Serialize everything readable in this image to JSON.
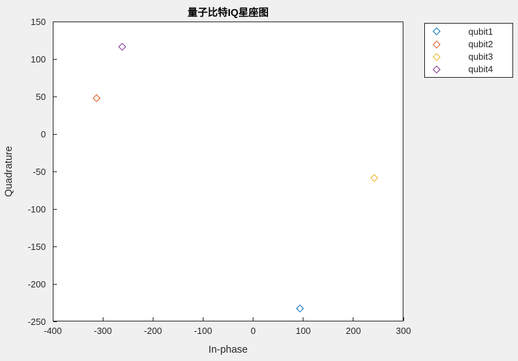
{
  "figure": {
    "background": "#F0F0F0"
  },
  "chart_data": {
    "type": "scatter",
    "title": "量子比特IQ星座图",
    "xlabel": "In-phase",
    "ylabel": "Quadrature",
    "xlim": [
      -400,
      300
    ],
    "ylim": [
      -250,
      150
    ],
    "xticks": [
      -400,
      -300,
      -200,
      -100,
      0,
      100,
      200,
      300
    ],
    "yticks": [
      150,
      100,
      50,
      0,
      -50,
      -100,
      -150,
      -200,
      -250
    ],
    "grid": false,
    "marker": "hollow-diamond",
    "legend_position": "outside-top-right",
    "series": [
      {
        "name": "qubit1",
        "color": "#0072BD",
        "points": [
          [
            93,
            -232
          ]
        ]
      },
      {
        "name": "qubit2",
        "color": "#D95319",
        "points": [
          [
            -313,
            48
          ]
        ]
      },
      {
        "name": "qubit3",
        "color": "#EDB120",
        "points": [
          [
            242,
            -58
          ]
        ]
      },
      {
        "name": "qubit4",
        "color": "#7E2F8E",
        "points": [
          [
            -261,
            117
          ]
        ]
      }
    ]
  },
  "colors": {
    "figure_bg": "#F0F0F0",
    "axes_bg": "#FFFFFF",
    "axis_line": "#262626",
    "tick_text": "#262626",
    "title_text": "#000000"
  }
}
